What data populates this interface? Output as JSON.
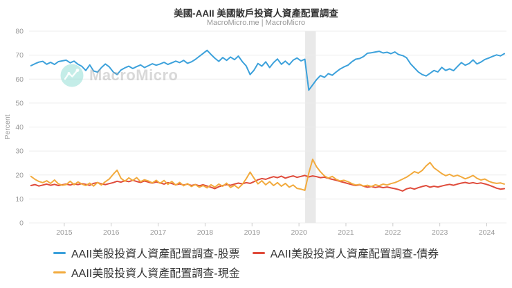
{
  "watermark": {
    "brand": "MacroMicro"
  },
  "chart_data": {
    "type": "line",
    "title": "美國-AAII 美國散戶投資人資產配置調查",
    "subtitle": "MacroMicro.me | MacroMicro",
    "ylabel": "Percent",
    "ylim": [
      0,
      80
    ],
    "yticks": [
      0,
      10,
      20,
      30,
      40,
      50,
      60,
      70,
      80
    ],
    "xticks": [
      2015,
      2016,
      2017,
      2018,
      2019,
      2020,
      2021,
      2022,
      2023,
      2024
    ],
    "xlim": [
      2014.25,
      2024.42
    ],
    "x_start": 2014.292,
    "x_step": "monthly",
    "grid": true,
    "legend_position": "bottom",
    "band": {
      "from": 2020.13,
      "to": 2020.36,
      "color": "#e9e9e9",
      "meaning": "recession-shading"
    },
    "colors": {
      "grid": "#ececec",
      "tick": "#999999",
      "tick_mark": "#cccccc"
    },
    "series": [
      {
        "key": "stocks",
        "name": "AAII美股投資人資產配置調查-股票",
        "color": "#3ca1db",
        "values": [
          65.6,
          66.4,
          67.1,
          67.4,
          66.2,
          67.0,
          66.1,
          67.3,
          67.6,
          67.9,
          66.8,
          67.5,
          66.2,
          65.3,
          63.6,
          65.9,
          63.4,
          62.9,
          64.8,
          66.3,
          65.1,
          63.0,
          61.9,
          63.8,
          64.7,
          65.4,
          64.4,
          65.2,
          65.9,
          64.8,
          65.6,
          66.4,
          65.8,
          66.3,
          67.0,
          66.1,
          66.8,
          67.5,
          66.9,
          67.8,
          66.6,
          67.2,
          68.2,
          69.5,
          70.7,
          72.0,
          70.3,
          68.7,
          67.4,
          69.0,
          67.8,
          69.2,
          68.1,
          69.6,
          67.3,
          65.5,
          61.9,
          63.7,
          66.5,
          65.4,
          67.2,
          64.8,
          66.9,
          68.4,
          66.2,
          67.5,
          66.0,
          67.9,
          68.8,
          67.6,
          68.3,
          55.4,
          57.6,
          59.8,
          61.5,
          60.7,
          62.3,
          61.6,
          63.0,
          64.2,
          65.1,
          65.8,
          67.2,
          68.3,
          68.6,
          69.4,
          70.8,
          71.0,
          71.3,
          71.6,
          70.9,
          71.2,
          70.6,
          71.3,
          70.2,
          69.8,
          68.9,
          66.4,
          64.7,
          63.0,
          61.9,
          61.3,
          62.4,
          63.6,
          63.0,
          64.9,
          63.6,
          64.3,
          63.5,
          65.2,
          66.9,
          65.8,
          66.5,
          68.0,
          66.3,
          67.1,
          68.2,
          68.8,
          69.5,
          70.1,
          69.7,
          70.6
        ]
      },
      {
        "key": "bonds",
        "name": "AAII美股投資人資產配置調查-債券",
        "color": "#df4b3b",
        "values": [
          15.6,
          16.0,
          15.4,
          15.8,
          16.2,
          15.7,
          16.1,
          15.6,
          15.9,
          16.2,
          15.8,
          16.3,
          16.0,
          16.4,
          16.1,
          15.7,
          16.5,
          16.8,
          16.3,
          16.0,
          16.4,
          16.8,
          17.4,
          17.0,
          17.6,
          17.2,
          17.8,
          17.3,
          16.9,
          17.5,
          17.0,
          16.6,
          17.1,
          16.7,
          16.2,
          16.8,
          16.4,
          15.9,
          16.3,
          15.8,
          16.2,
          15.6,
          16.0,
          15.5,
          15.9,
          15.4,
          14.9,
          14.3,
          15.1,
          15.6,
          16.0,
          15.7,
          16.2,
          16.6,
          16.3,
          16.8,
          16.5,
          17.2,
          18.0,
          18.5,
          18.2,
          18.8,
          19.3,
          18.9,
          19.5,
          18.7,
          19.2,
          19.6,
          19.0,
          19.4,
          19.8,
          19.2,
          19.6,
          19.3,
          18.9,
          19.1,
          18.6,
          18.2,
          17.8,
          17.3,
          16.9,
          16.4,
          16.0,
          15.6,
          15.9,
          15.3,
          14.9,
          15.2,
          14.8,
          15.1,
          14.7,
          15.0,
          14.6,
          14.3,
          13.9,
          13.3,
          14.2,
          14.6,
          14.1,
          14.7,
          15.2,
          15.6,
          14.9,
          15.3,
          15.0,
          15.4,
          15.8,
          16.1,
          15.7,
          16.2,
          16.6,
          16.9,
          16.5,
          16.8,
          16.4,
          16.7,
          16.3,
          15.8,
          15.2,
          14.5,
          14.1,
          14.3
        ]
      },
      {
        "key": "cash",
        "name": "AAII美股投資人資產配置調查-現金",
        "color": "#f2aa3d",
        "values": [
          19.4,
          18.2,
          17.3,
          16.8,
          17.6,
          16.5,
          17.9,
          16.3,
          15.7,
          16.0,
          17.4,
          15.9,
          17.1,
          16.2,
          15.6,
          16.6,
          15.4,
          16.9,
          15.8,
          17.2,
          18.3,
          20.3,
          22.0,
          18.6,
          17.4,
          18.8,
          17.7,
          18.9,
          17.2,
          18.0,
          17.5,
          16.7,
          17.8,
          16.5,
          17.7,
          16.1,
          17.3,
          15.8,
          16.9,
          15.5,
          16.4,
          15.2,
          16.0,
          14.9,
          15.6,
          14.6,
          15.9,
          14.9,
          16.2,
          15.3,
          16.6,
          14.8,
          15.7,
          14.5,
          16.1,
          18.4,
          21.2,
          18.7,
          16.3,
          17.6,
          15.9,
          17.2,
          15.6,
          16.8,
          15.3,
          16.5,
          14.9,
          15.8,
          14.4,
          14.1,
          13.6,
          20.8,
          26.5,
          23.4,
          21.3,
          19.6,
          18.7,
          19.4,
          18.2,
          17.5,
          17.8,
          17.2,
          16.4,
          15.8,
          16.1,
          15.4,
          15.7,
          15.2,
          15.9,
          15.5,
          16.2,
          15.8,
          16.4,
          16.8,
          17.5,
          18.3,
          19.1,
          20.2,
          21.4,
          20.8,
          21.9,
          23.8,
          25.2,
          23.0,
          21.8,
          20.6,
          19.7,
          20.3,
          19.4,
          19.9,
          19.2,
          18.4,
          19.0,
          19.8,
          18.6,
          17.9,
          18.3,
          17.4,
          16.8,
          16.5,
          16.7,
          16.2
        ]
      }
    ]
  }
}
